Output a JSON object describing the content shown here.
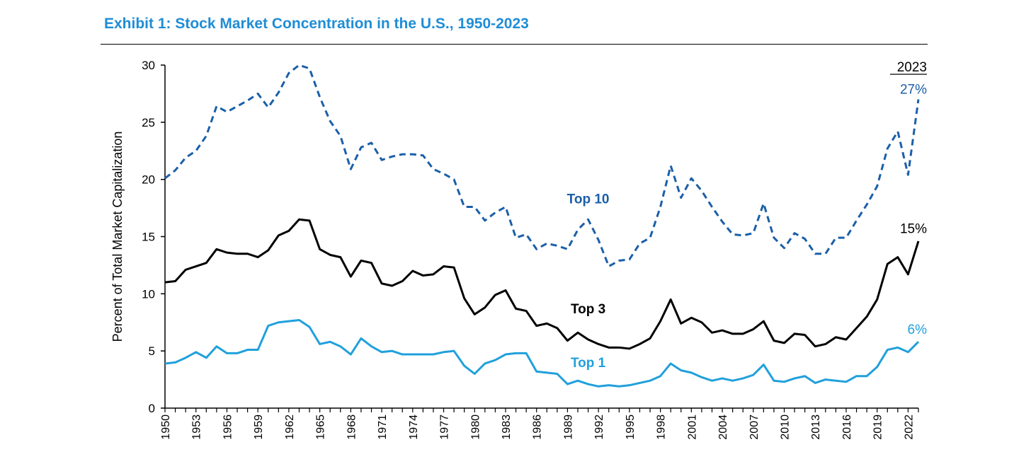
{
  "chart_data": {
    "type": "line",
    "title": "Exhibit 1: Stock Market Concentration in the U.S., 1950-2023",
    "ylabel": "Percent of Total Market Capitalization",
    "xlabel": "",
    "xlim": [
      1950,
      2023
    ],
    "ylim": [
      0,
      30
    ],
    "yticks": [
      "0",
      "5",
      "10",
      "15",
      "20",
      "25",
      "30"
    ],
    "xtick_labels": [
      "1950",
      "1953",
      "1956",
      "1959",
      "1962",
      "1965",
      "1968",
      "1971",
      "1974",
      "1977",
      "1980",
      "1983",
      "1986",
      "1989",
      "1992",
      "1995",
      "1998",
      "2001",
      "2004",
      "2007",
      "2010",
      "2013",
      "2016",
      "2019",
      "2022"
    ],
    "grid": false,
    "year_marker": "2023",
    "x": [
      1950,
      1951,
      1952,
      1953,
      1954,
      1955,
      1956,
      1957,
      1958,
      1959,
      1960,
      1961,
      1962,
      1963,
      1964,
      1965,
      1966,
      1967,
      1968,
      1969,
      1970,
      1971,
      1972,
      1973,
      1974,
      1975,
      1976,
      1977,
      1978,
      1979,
      1980,
      1981,
      1982,
      1983,
      1984,
      1985,
      1986,
      1987,
      1988,
      1989,
      1990,
      1991,
      1992,
      1993,
      1994,
      1995,
      1996,
      1997,
      1998,
      1999,
      2000,
      2001,
      2002,
      2003,
      2004,
      2005,
      2006,
      2007,
      2008,
      2009,
      2010,
      2011,
      2012,
      2013,
      2014,
      2015,
      2016,
      2017,
      2018,
      2019,
      2020,
      2021,
      2022,
      2023
    ],
    "series": [
      {
        "name": "Top 10",
        "label": "Top 10",
        "end_label": "27%",
        "color": "#1b5fa8",
        "dash": true,
        "values": [
          20.1,
          20.8,
          21.9,
          22.5,
          23.8,
          26.4,
          25.9,
          26.4,
          26.9,
          27.5,
          26.3,
          27.6,
          29.3,
          30.0,
          29.7,
          27.2,
          25.1,
          23.8,
          20.9,
          22.8,
          23.2,
          21.7,
          22.0,
          22.2,
          22.2,
          22.1,
          20.9,
          20.5,
          20.0,
          17.6,
          17.6,
          16.4,
          17.1,
          17.6,
          14.9,
          15.2,
          13.9,
          14.4,
          14.2,
          13.9,
          15.6,
          16.5,
          14.7,
          12.4,
          12.9,
          13.0,
          14.4,
          14.9,
          17.6,
          21.2,
          18.4,
          20.1,
          19.0,
          17.6,
          16.3,
          15.2,
          15.1,
          15.3,
          17.9,
          14.9,
          14.0,
          15.3,
          14.8,
          13.5,
          13.5,
          14.9,
          14.9,
          16.4,
          17.8,
          19.4,
          22.7,
          24.2,
          20.4,
          27.0
        ]
      },
      {
        "name": "Top 3",
        "label": "Top 3",
        "end_label": "15%",
        "color": "#000000",
        "dash": false,
        "values": [
          11.0,
          11.1,
          12.1,
          12.4,
          12.7,
          13.9,
          13.6,
          13.5,
          13.5,
          13.2,
          13.8,
          15.1,
          15.5,
          16.5,
          16.4,
          13.9,
          13.4,
          13.2,
          11.5,
          12.9,
          12.7,
          10.9,
          10.7,
          11.1,
          12.0,
          11.6,
          11.7,
          12.4,
          12.3,
          9.6,
          8.2,
          8.8,
          9.9,
          10.3,
          8.7,
          8.5,
          7.2,
          7.4,
          7.0,
          5.9,
          6.6,
          6.0,
          5.6,
          5.3,
          5.3,
          5.2,
          5.6,
          6.1,
          7.6,
          9.5,
          7.4,
          7.9,
          7.5,
          6.6,
          6.8,
          6.5,
          6.5,
          6.9,
          7.6,
          5.9,
          5.7,
          6.5,
          6.4,
          5.4,
          5.6,
          6.2,
          6.0,
          7.0,
          8.0,
          9.5,
          12.6,
          13.2,
          11.7,
          14.6
        ]
      },
      {
        "name": "Top 1",
        "label": "Top 1",
        "end_label": "6%",
        "color": "#20a0dc",
        "dash": false,
        "values": [
          3.9,
          4.0,
          4.4,
          4.9,
          4.4,
          5.4,
          4.8,
          4.8,
          5.1,
          5.1,
          7.2,
          7.5,
          7.6,
          7.7,
          7.1,
          5.6,
          5.8,
          5.4,
          4.7,
          6.1,
          5.4,
          4.9,
          5.0,
          4.7,
          4.7,
          4.7,
          4.7,
          4.9,
          5.0,
          3.7,
          3.0,
          3.9,
          4.2,
          4.7,
          4.8,
          4.8,
          3.2,
          3.1,
          3.0,
          2.1,
          2.4,
          2.1,
          1.9,
          2.0,
          1.9,
          2.0,
          2.2,
          2.4,
          2.8,
          3.9,
          3.3,
          3.1,
          2.7,
          2.4,
          2.6,
          2.4,
          2.6,
          2.9,
          3.8,
          2.4,
          2.3,
          2.6,
          2.8,
          2.2,
          2.5,
          2.4,
          2.3,
          2.8,
          2.8,
          3.6,
          5.1,
          5.3,
          4.9,
          5.8
        ]
      }
    ]
  }
}
